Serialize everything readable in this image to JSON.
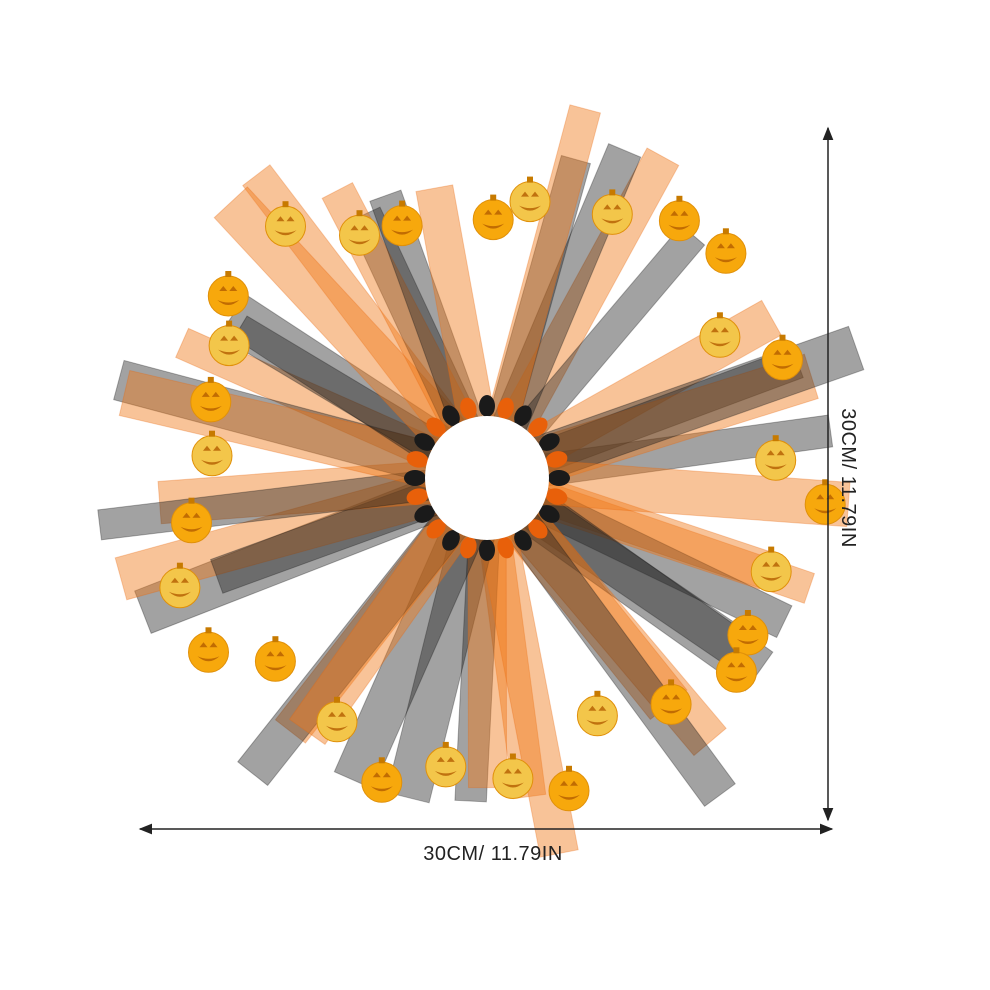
{
  "dimensions": {
    "width": "30CM/ 11.79IN",
    "height": "30CM/ 11.79IN"
  }
}
